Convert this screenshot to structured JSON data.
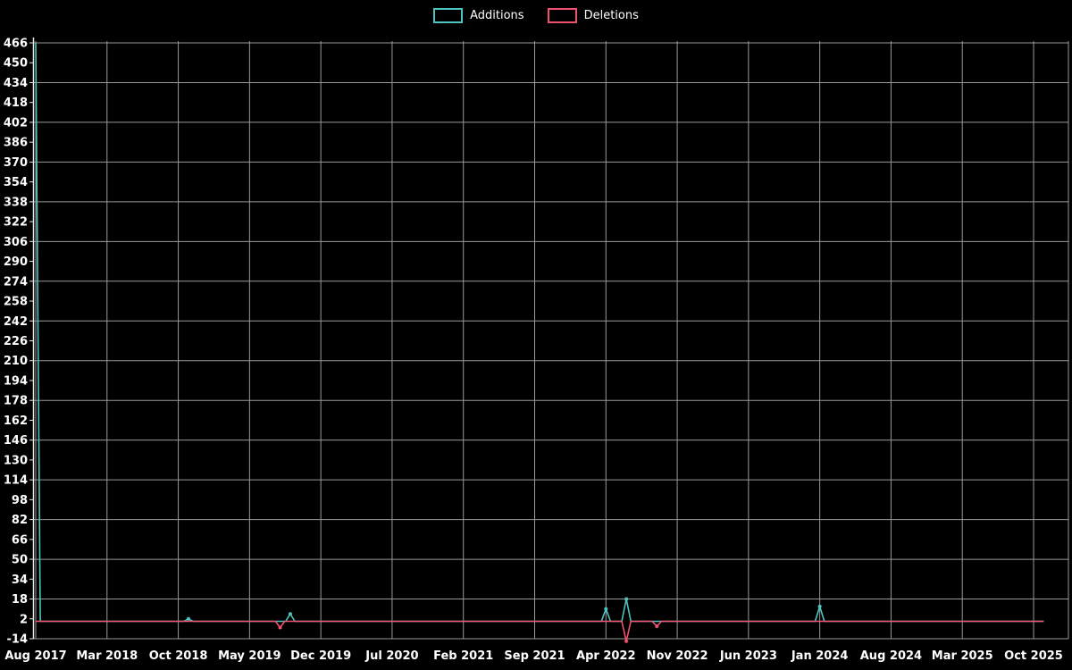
{
  "legend": [
    {
      "label": "Additions",
      "color": "#4fc3bf"
    },
    {
      "label": "Deletions",
      "color": "#f0516e"
    }
  ],
  "chart_data": {
    "type": "line",
    "title": "",
    "xlabel": "",
    "ylabel": "",
    "background": "#000000",
    "grid_color": "#999999",
    "axis_color": "#e6e6e6",
    "text_color": "#ffffff",
    "legend_position": "top-center",
    "x_axis": {
      "ticks": [
        "Aug 2017",
        "Mar 2018",
        "Oct 2018",
        "May 2019",
        "Dec 2019",
        "Jul 2020",
        "Feb 2021",
        "Sep 2021",
        "Apr 2022",
        "Nov 2022",
        "Jun 2023",
        "Jan 2024",
        "Aug 2024",
        "Mar 2025",
        "Oct 2025"
      ],
      "tick_interval_months": 7,
      "range_months": 99
    },
    "y_axis": {
      "min": -14,
      "max": 466,
      "tick_step": 16,
      "grid_step": 32,
      "ticks": [
        466,
        450,
        434,
        418,
        402,
        386,
        370,
        354,
        338,
        322,
        306,
        290,
        274,
        258,
        242,
        226,
        210,
        194,
        178,
        162,
        146,
        130,
        114,
        98,
        82,
        66,
        50,
        34,
        18,
        2,
        -14
      ]
    },
    "series": [
      {
        "name": "Additions",
        "color": "#4fc3bf",
        "baseline": 0,
        "events": [
          {
            "date": "Aug 2017",
            "month": 0,
            "value": 466
          },
          {
            "date": "Nov 2018",
            "month": 15,
            "value": 2
          },
          {
            "date": "Sep 2019",
            "month": 25,
            "value": 6
          },
          {
            "date": "Apr 2022",
            "month": 56,
            "value": 10
          },
          {
            "date": "Jun 2022",
            "month": 58,
            "value": 18
          },
          {
            "date": "Jan 2024",
            "month": 77,
            "value": 12
          }
        ]
      },
      {
        "name": "Deletions",
        "color": "#f0516e",
        "baseline": 0,
        "events": [
          {
            "date": "Aug 2019",
            "month": 24,
            "value": -5
          },
          {
            "date": "Jun 2022",
            "month": 58,
            "value": -16
          },
          {
            "date": "Sep 2022",
            "month": 61,
            "value": -4
          }
        ]
      }
    ]
  }
}
